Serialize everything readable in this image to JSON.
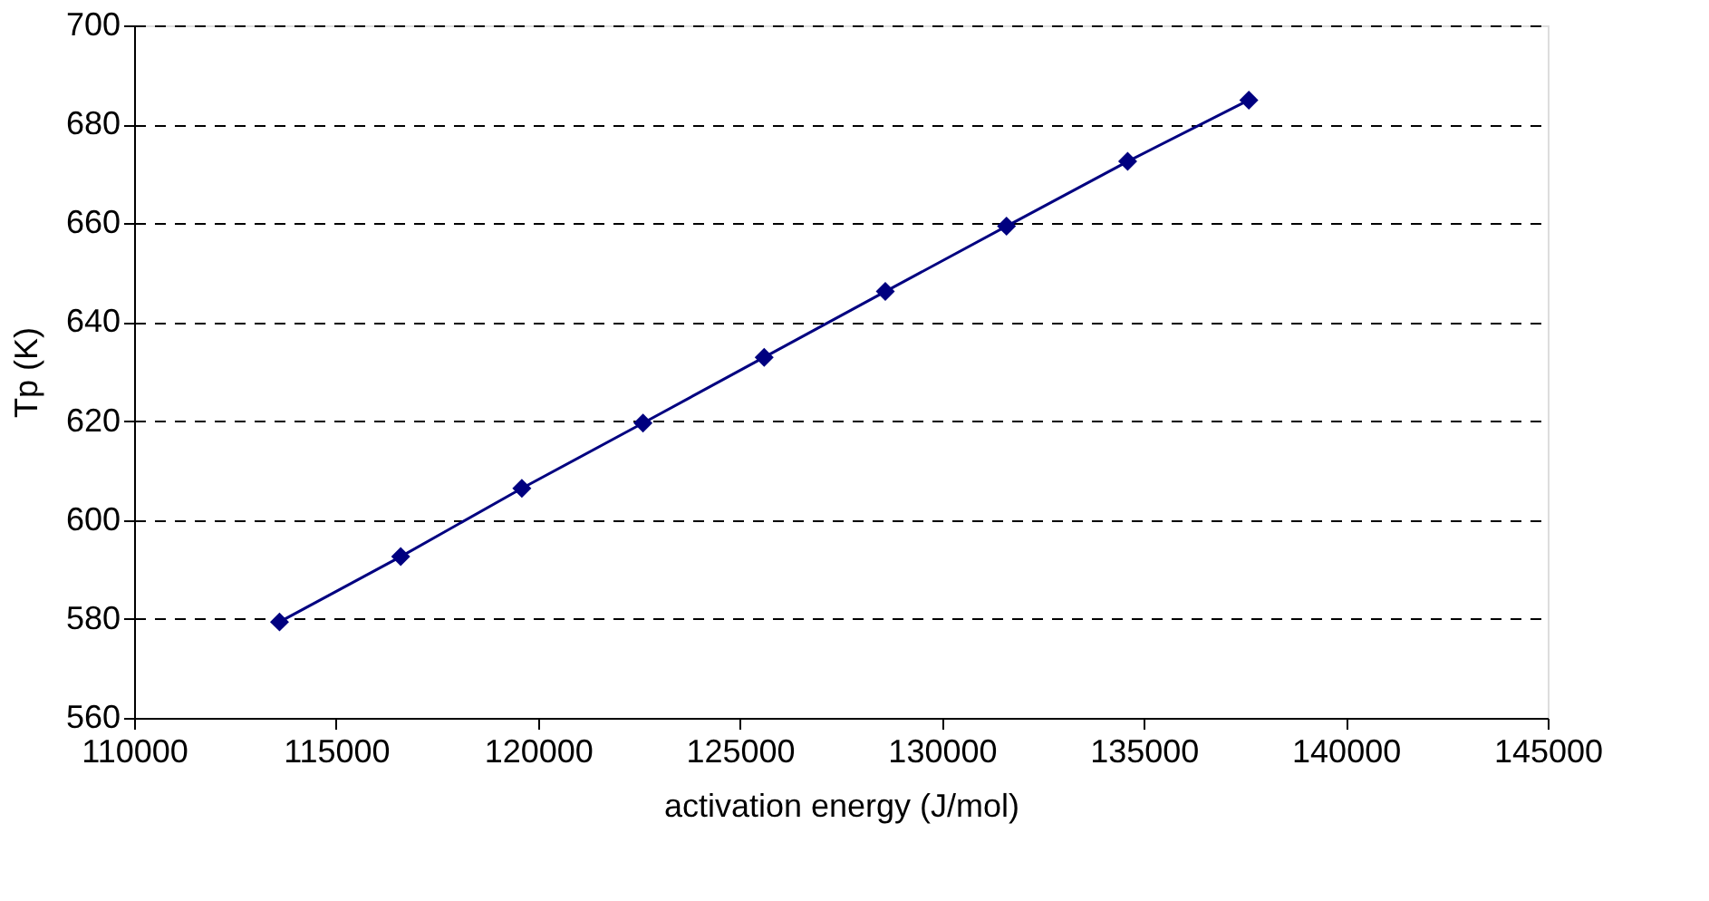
{
  "chart_data": {
    "type": "line",
    "xlabel": "activation energy (J/mol)",
    "ylabel": "Tp (K)",
    "x": [
      113600,
      116600,
      119600,
      122600,
      125600,
      128600,
      131600,
      134600,
      137600
    ],
    "series": [
      {
        "color": "#000080",
        "values": [
          579.4,
          592.6,
          606.4,
          619.6,
          632.9,
          646.2,
          659.4,
          672.5,
          684.9
        ]
      }
    ],
    "xlim": [
      110000,
      145000
    ],
    "xticks": [
      110000,
      115000,
      120000,
      125000,
      130000,
      135000,
      140000,
      145000
    ],
    "ylim": [
      560,
      700
    ],
    "yticks": [
      560,
      580,
      600,
      620,
      640,
      660,
      680,
      700
    ],
    "grid": "y",
    "marker": "diamond",
    "line_style": "solid",
    "legend": false
  }
}
